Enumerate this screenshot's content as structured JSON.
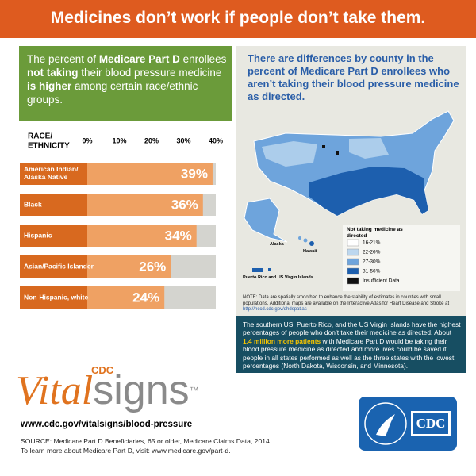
{
  "header": {
    "title": "Medicines don’t work if people don’t take them."
  },
  "intro": {
    "segments": [
      {
        "text": "The percent of ",
        "bold": false
      },
      {
        "text": "Medicare Part D",
        "bold": true
      },
      {
        "text": " enrollees ",
        "bold": false
      },
      {
        "text": "not taking",
        "bold": true
      },
      {
        "text": " their blood pressure medicine ",
        "bold": false
      },
      {
        "text": "is higher",
        "bold": true
      },
      {
        "text": " among certain race/ethnic groups.",
        "bold": false
      }
    ]
  },
  "chart_data": {
    "type": "bar",
    "orientation": "horizontal",
    "axis_title": [
      "RACE/",
      "ETHNICITY"
    ],
    "categories": [
      "American Indian/ Alaska Native",
      "Black",
      "Hispanic",
      "Asian/Pacific Islander",
      "Non-Hispanic, white"
    ],
    "values": [
      39,
      36,
      34,
      26,
      24
    ],
    "value_labels": [
      "39%",
      "36%",
      "34%",
      "26%",
      "24%"
    ],
    "xlim": [
      0,
      40
    ],
    "xticks": [
      {
        "value": 0,
        "label": "0%"
      },
      {
        "value": 10,
        "label": "10%"
      },
      {
        "value": 20,
        "label": "20%"
      },
      {
        "value": 30,
        "label": "30%"
      },
      {
        "value": 40,
        "label": "40%"
      }
    ],
    "color": "#efa163",
    "label_color": "#d8691f",
    "track_color": "#d4d4cf"
  },
  "map": {
    "title": "There are differences by county in the percent of Medicare Part D enrollees who aren’t taking their blood pressure medicine as directed.",
    "legend_title": "Not taking medicine as directed",
    "legend": [
      {
        "label": "16-21%",
        "color": "#ffffff"
      },
      {
        "label": "22-26%",
        "color": "#bcd7ef"
      },
      {
        "label": "27-30%",
        "color": "#6ea4dc"
      },
      {
        "label": "31-56%",
        "color": "#1d5fae"
      },
      {
        "label": "Insufficient Data",
        "color": "#111111"
      }
    ],
    "places": [
      "Alaska",
      "Hawaii",
      "Puerto Rico and US Virgin Islands"
    ],
    "note": "NOTE: Data are spatially smoothed to enhance the stability of estimates in counties with small populations. Additional maps are available on the Interactive Atlas for Heart Disease and Stroke at ",
    "note_link": "http://nccd.cdc.gov/dhdspatlas"
  },
  "summary": {
    "segments": [
      {
        "text": "The southern US, Puerto Rico, and the US Virgin Islands have the highest percentages of people who don’t take their medicine as directed. About ",
        "bold": false
      },
      {
        "text": "1.4 million more patients",
        "bold": true
      },
      {
        "text": " with Medicare Part D would be taking their blood pressure medicine as directed and more lives could be saved if people in all states performed as well as the three states with the lowest percentages (North Dakota, Wisconsin, and Minnesota).",
        "bold": false
      }
    ]
  },
  "footer": {
    "brand_small": "CDC",
    "brand_vital": "Vital",
    "brand_signs": "signs",
    "trademark": "™",
    "url": "www.cdc.gov/vitalsigns/blood-pressure",
    "source": [
      "SOURCE: Medicare Part D Beneficiaries, 65 or older, Medicare Claims Data, 2014.",
      "To learn more about Medicare Part D, visit: www.medicare.gov/part-d."
    ]
  },
  "logo": {
    "text": "CDC"
  }
}
